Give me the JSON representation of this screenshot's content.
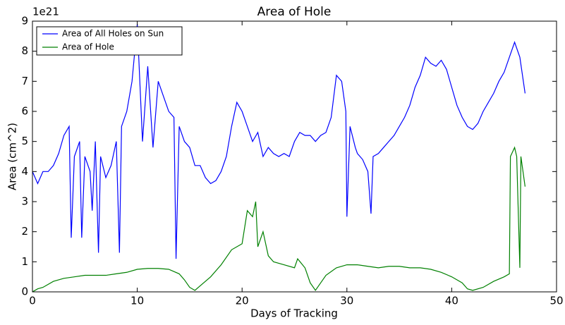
{
  "chart_data": {
    "type": "line",
    "title": "Area of Hole",
    "xlabel": "Days of Tracking",
    "ylabel": "Area (cm^2)",
    "y_offset_label": "1e21",
    "xlim": [
      0,
      50
    ],
    "xticks": [
      0,
      10,
      20,
      30,
      40,
      50
    ],
    "ylim": [
      0,
      9
    ],
    "yticks": [
      0,
      1,
      2,
      3,
      4,
      5,
      6,
      7,
      8,
      9
    ],
    "grid": false,
    "legend": "upper left",
    "series": [
      {
        "name": "Area of All Holes on Sun",
        "color": "#0000ff",
        "x": [
          0,
          0.5,
          1,
          1.5,
          2,
          2.5,
          3,
          3.5,
          3.7,
          4,
          4.5,
          4.7,
          5,
          5.5,
          5.7,
          6,
          6.3,
          6.5,
          7,
          7.5,
          8,
          8.3,
          8.5,
          9,
          9.5,
          10,
          10.5,
          11,
          11.5,
          12,
          12.5,
          13,
          13.5,
          13.7,
          14,
          14.5,
          15,
          15.5,
          16,
          16.5,
          17,
          17.5,
          18,
          18.5,
          19,
          19.5,
          20,
          20.5,
          21,
          21.5,
          22,
          22.5,
          23,
          23.5,
          24,
          24.5,
          25,
          25.5,
          26,
          26.5,
          27,
          27.5,
          28,
          28.5,
          29,
          29.5,
          29.9,
          30,
          30.3,
          30.8,
          31,
          31.5,
          32,
          32.3,
          32.5,
          33,
          33.5,
          34,
          34.5,
          35,
          35.5,
          36,
          36.5,
          37,
          37.5,
          38,
          38.5,
          39,
          39.5,
          40,
          40.5,
          41,
          41.5,
          42,
          42.5,
          43,
          43.5,
          44,
          44.5,
          45,
          45.5,
          46,
          46.5,
          47
        ],
        "values": [
          4.0,
          3.6,
          4.0,
          4.0,
          4.2,
          4.6,
          5.2,
          5.5,
          1.8,
          4.5,
          5.0,
          1.8,
          4.5,
          4.0,
          2.7,
          5.0,
          1.3,
          4.5,
          3.8,
          4.2,
          5.0,
          1.3,
          5.5,
          6.0,
          7.0,
          8.9,
          5.0,
          7.5,
          4.8,
          7.0,
          6.5,
          6.0,
          5.8,
          1.1,
          5.5,
          5.0,
          4.8,
          4.2,
          4.2,
          3.8,
          3.6,
          3.7,
          4.0,
          4.5,
          5.5,
          6.3,
          6.0,
          5.5,
          5.0,
          5.3,
          4.5,
          4.8,
          4.6,
          4.5,
          4.6,
          4.5,
          5.0,
          5.3,
          5.2,
          5.2,
          5.0,
          5.2,
          5.3,
          5.8,
          7.2,
          7.0,
          6.0,
          2.5,
          5.5,
          4.8,
          4.6,
          4.4,
          4.0,
          2.6,
          4.5,
          4.6,
          4.8,
          5.0,
          5.2,
          5.5,
          5.8,
          6.2,
          6.8,
          7.2,
          7.8,
          7.6,
          7.5,
          7.7,
          7.4,
          6.8,
          6.2,
          5.8,
          5.5,
          5.4,
          5.6,
          6.0,
          6.3,
          6.6,
          7.0,
          7.3,
          7.8,
          8.3,
          7.8,
          6.6
        ]
      },
      {
        "name": "Area of Hole",
        "color": "#008000",
        "x": [
          0,
          0.5,
          1,
          2,
          3,
          4,
          5,
          6,
          7,
          8,
          9,
          10,
          11,
          12,
          13,
          14,
          14.5,
          15,
          15.5,
          16,
          17,
          18,
          19,
          20,
          20.5,
          21,
          21.3,
          21.5,
          22,
          22.5,
          23,
          24,
          25,
          25.3,
          26,
          26.5,
          27,
          27.5,
          28,
          29,
          30,
          31,
          32,
          33,
          34,
          35,
          36,
          37,
          38,
          39,
          40,
          41,
          41.5,
          42,
          43,
          44,
          45,
          45.5,
          45.6,
          46,
          46.2,
          46.5,
          46.6,
          47
        ],
        "values": [
          0,
          0.1,
          0.15,
          0.35,
          0.45,
          0.5,
          0.55,
          0.55,
          0.55,
          0.6,
          0.65,
          0.75,
          0.78,
          0.78,
          0.75,
          0.6,
          0.4,
          0.15,
          0.05,
          0.2,
          0.5,
          0.9,
          1.4,
          1.6,
          2.7,
          2.5,
          3.0,
          1.5,
          2.0,
          1.2,
          1.0,
          0.9,
          0.8,
          1.1,
          0.8,
          0.3,
          0.05,
          0.3,
          0.55,
          0.8,
          0.9,
          0.9,
          0.85,
          0.8,
          0.85,
          0.85,
          0.8,
          0.8,
          0.75,
          0.65,
          0.5,
          0.3,
          0.1,
          0.05,
          0.15,
          0.35,
          0.5,
          0.6,
          4.5,
          4.8,
          4.5,
          0.8,
          4.5,
          3.5
        ]
      }
    ]
  }
}
